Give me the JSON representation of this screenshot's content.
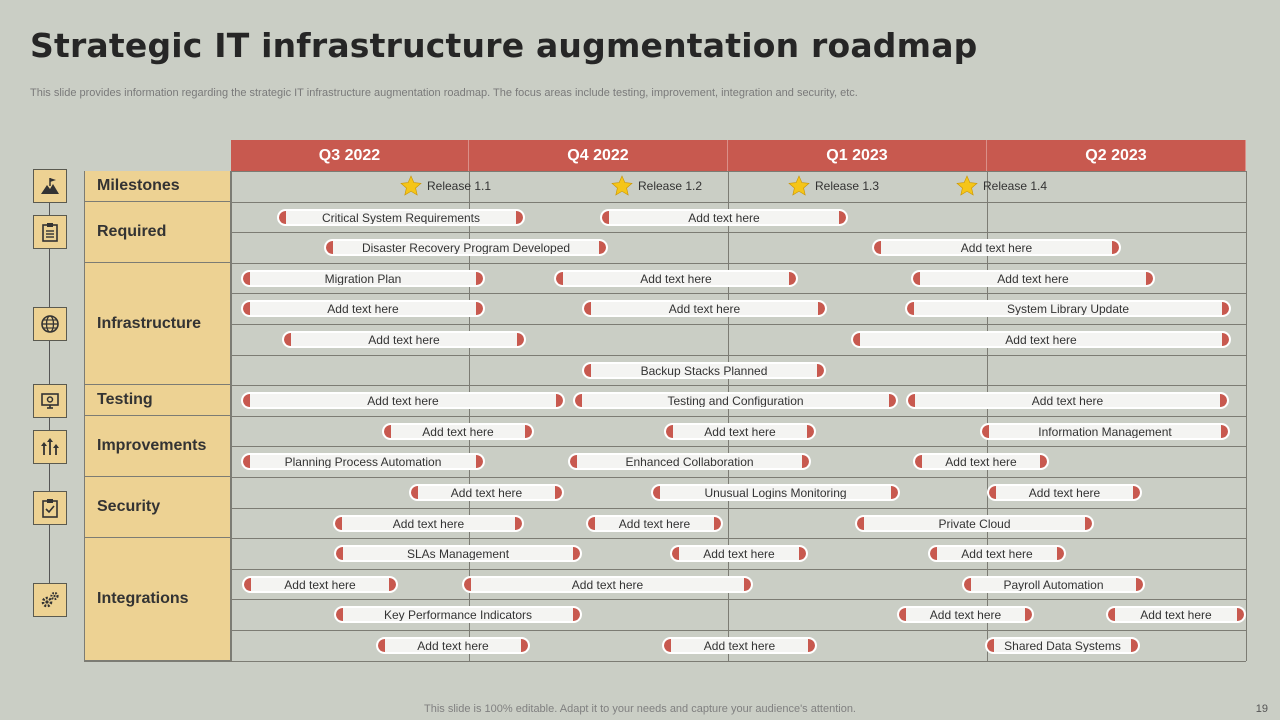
{
  "title": "Strategic IT infrastructure augmentation roadmap",
  "subtitle": "This slide provides information regarding the strategic IT infrastructure augmentation roadmap. The focus areas include testing, improvement, integration and security, etc.",
  "footer": "This slide is 100% editable. Adapt it to your needs and capture your audience's attention.",
  "page_number": "19",
  "colors": {
    "header": "#c8594f",
    "category": "#edd293",
    "background": "#cacec5",
    "bar": "#f4f4f2",
    "star": "#f5c518"
  },
  "quarters": [
    "Q3 2022",
    "Q4 2022",
    "Q1 2023",
    "Q2 2023"
  ],
  "categories": [
    {
      "label": "Milestones",
      "icon": "flag-mountain-icon"
    },
    {
      "label": "Required",
      "icon": "clipboard-list-icon"
    },
    {
      "label": "Infrastructure",
      "icon": "globe-network-icon"
    },
    {
      "label": "Testing",
      "icon": "monitor-gear-icon"
    },
    {
      "label": "Improvements",
      "icon": "growth-arrows-icon"
    },
    {
      "label": "Security",
      "icon": "clipboard-check-icon"
    },
    {
      "label": "Integrations",
      "icon": "gears-icon"
    }
  ],
  "milestones": [
    "Release  1.1",
    "Release  1.2",
    "Release  1.3",
    "Release  1.4"
  ],
  "bars": [
    "Critical System Requirements",
    "Add text here",
    "Disaster Recovery Program Developed",
    "Add text here",
    "Migration Plan",
    "Add text here",
    "Add text here",
    "Add text here",
    "Add text here",
    "System Library Update",
    "Add text here",
    "Add text here",
    "Backup Stacks Planned",
    "Add text here",
    "Testing and Configuration",
    "Add text here",
    "Add text here",
    "Add text here",
    "Information Management",
    "Planning Process Automation",
    "Enhanced Collaboration",
    "Add text here",
    "Add text here",
    "Unusual Logins Monitoring",
    "Add text here",
    "Add text here",
    "Add text here",
    "Private Cloud",
    "SLAs Management",
    "Add text here",
    "Add text here",
    "Add text here",
    "Add text here",
    "Payroll Automation",
    "Key Performance Indicators",
    "Add text here",
    "Add text here",
    "Add text here",
    "Add text here",
    "Shared Data Systems"
  ]
}
